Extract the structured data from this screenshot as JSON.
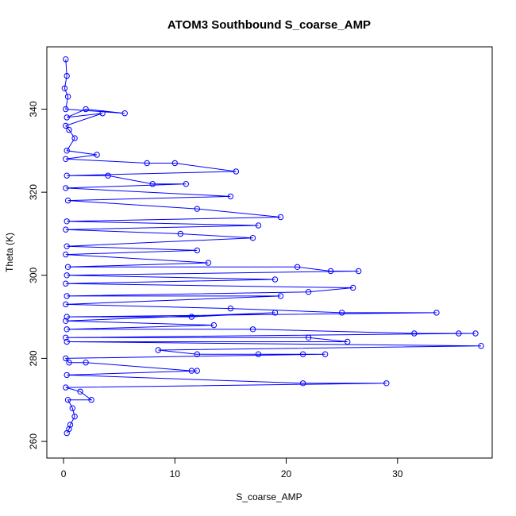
{
  "chart_data": {
    "type": "scatter",
    "title": "ATOM3 Southbound S_coarse_AMP",
    "xlabel": "S_coarse_AMP",
    "ylabel": "Theta (K)",
    "xlim": [
      -1.5,
      38.5
    ],
    "ylim": [
      256,
      355
    ],
    "xticks": [
      0,
      10,
      20,
      30
    ],
    "yticks": [
      260,
      280,
      300,
      320,
      340
    ],
    "grid": false,
    "legend": "none",
    "color": "#0000ff",
    "marker": "open-circle",
    "connected": true,
    "series": [
      {
        "points": [
          [
            0.2,
            352
          ],
          [
            0.3,
            348
          ],
          [
            0.1,
            345
          ],
          [
            0.4,
            343
          ],
          [
            0.2,
            340
          ],
          [
            5.5,
            339
          ],
          [
            2.0,
            340
          ],
          [
            0.3,
            338
          ],
          [
            3.5,
            339
          ],
          [
            0.2,
            336
          ],
          [
            0.5,
            335
          ],
          [
            1.0,
            333
          ],
          [
            0.3,
            330
          ],
          [
            3.0,
            329
          ],
          [
            0.2,
            328
          ],
          [
            7.5,
            327
          ],
          [
            10.0,
            327
          ],
          [
            15.5,
            325
          ],
          [
            0.3,
            324
          ],
          [
            4.0,
            324
          ],
          [
            8.0,
            322
          ],
          [
            11.0,
            322
          ],
          [
            0.2,
            321
          ],
          [
            15.0,
            319
          ],
          [
            0.4,
            318
          ],
          [
            12.0,
            316
          ],
          [
            19.5,
            314
          ],
          [
            0.3,
            313
          ],
          [
            17.5,
            312
          ],
          [
            0.2,
            311
          ],
          [
            10.5,
            310
          ],
          [
            17.0,
            309
          ],
          [
            0.3,
            307
          ],
          [
            12.0,
            306
          ],
          [
            0.2,
            305
          ],
          [
            13.0,
            303
          ],
          [
            0.4,
            302
          ],
          [
            21.0,
            302
          ],
          [
            24.0,
            301
          ],
          [
            26.5,
            301
          ],
          [
            0.3,
            300
          ],
          [
            19.0,
            299
          ],
          [
            0.2,
            298
          ],
          [
            26.0,
            297
          ],
          [
            22.0,
            296
          ],
          [
            0.3,
            295
          ],
          [
            19.5,
            295
          ],
          [
            0.2,
            293
          ],
          [
            15.0,
            292
          ],
          [
            25.0,
            291
          ],
          [
            33.5,
            291
          ],
          [
            0.3,
            290
          ],
          [
            11.5,
            290
          ],
          [
            19.0,
            291
          ],
          [
            0.2,
            289
          ],
          [
            13.5,
            288
          ],
          [
            0.3,
            287
          ],
          [
            17.0,
            287
          ],
          [
            31.5,
            286
          ],
          [
            35.5,
            286
          ],
          [
            37.0,
            286
          ],
          [
            0.2,
            285
          ],
          [
            22.0,
            285
          ],
          [
            25.5,
            284
          ],
          [
            0.3,
            284
          ],
          [
            37.5,
            283
          ],
          [
            8.5,
            282
          ],
          [
            12.0,
            281
          ],
          [
            17.5,
            281
          ],
          [
            21.5,
            281
          ],
          [
            23.5,
            281
          ],
          [
            0.2,
            280
          ],
          [
            0.5,
            279
          ],
          [
            2.0,
            279
          ],
          [
            11.5,
            277
          ],
          [
            12.0,
            277
          ],
          [
            0.3,
            276
          ],
          [
            21.5,
            274
          ],
          [
            29.0,
            274
          ],
          [
            0.2,
            273
          ],
          [
            1.5,
            272
          ],
          [
            2.5,
            270
          ],
          [
            0.4,
            270
          ],
          [
            0.8,
            268
          ],
          [
            1.0,
            266
          ],
          [
            0.6,
            264
          ],
          [
            0.5,
            263
          ],
          [
            0.3,
            262
          ]
        ]
      }
    ]
  }
}
